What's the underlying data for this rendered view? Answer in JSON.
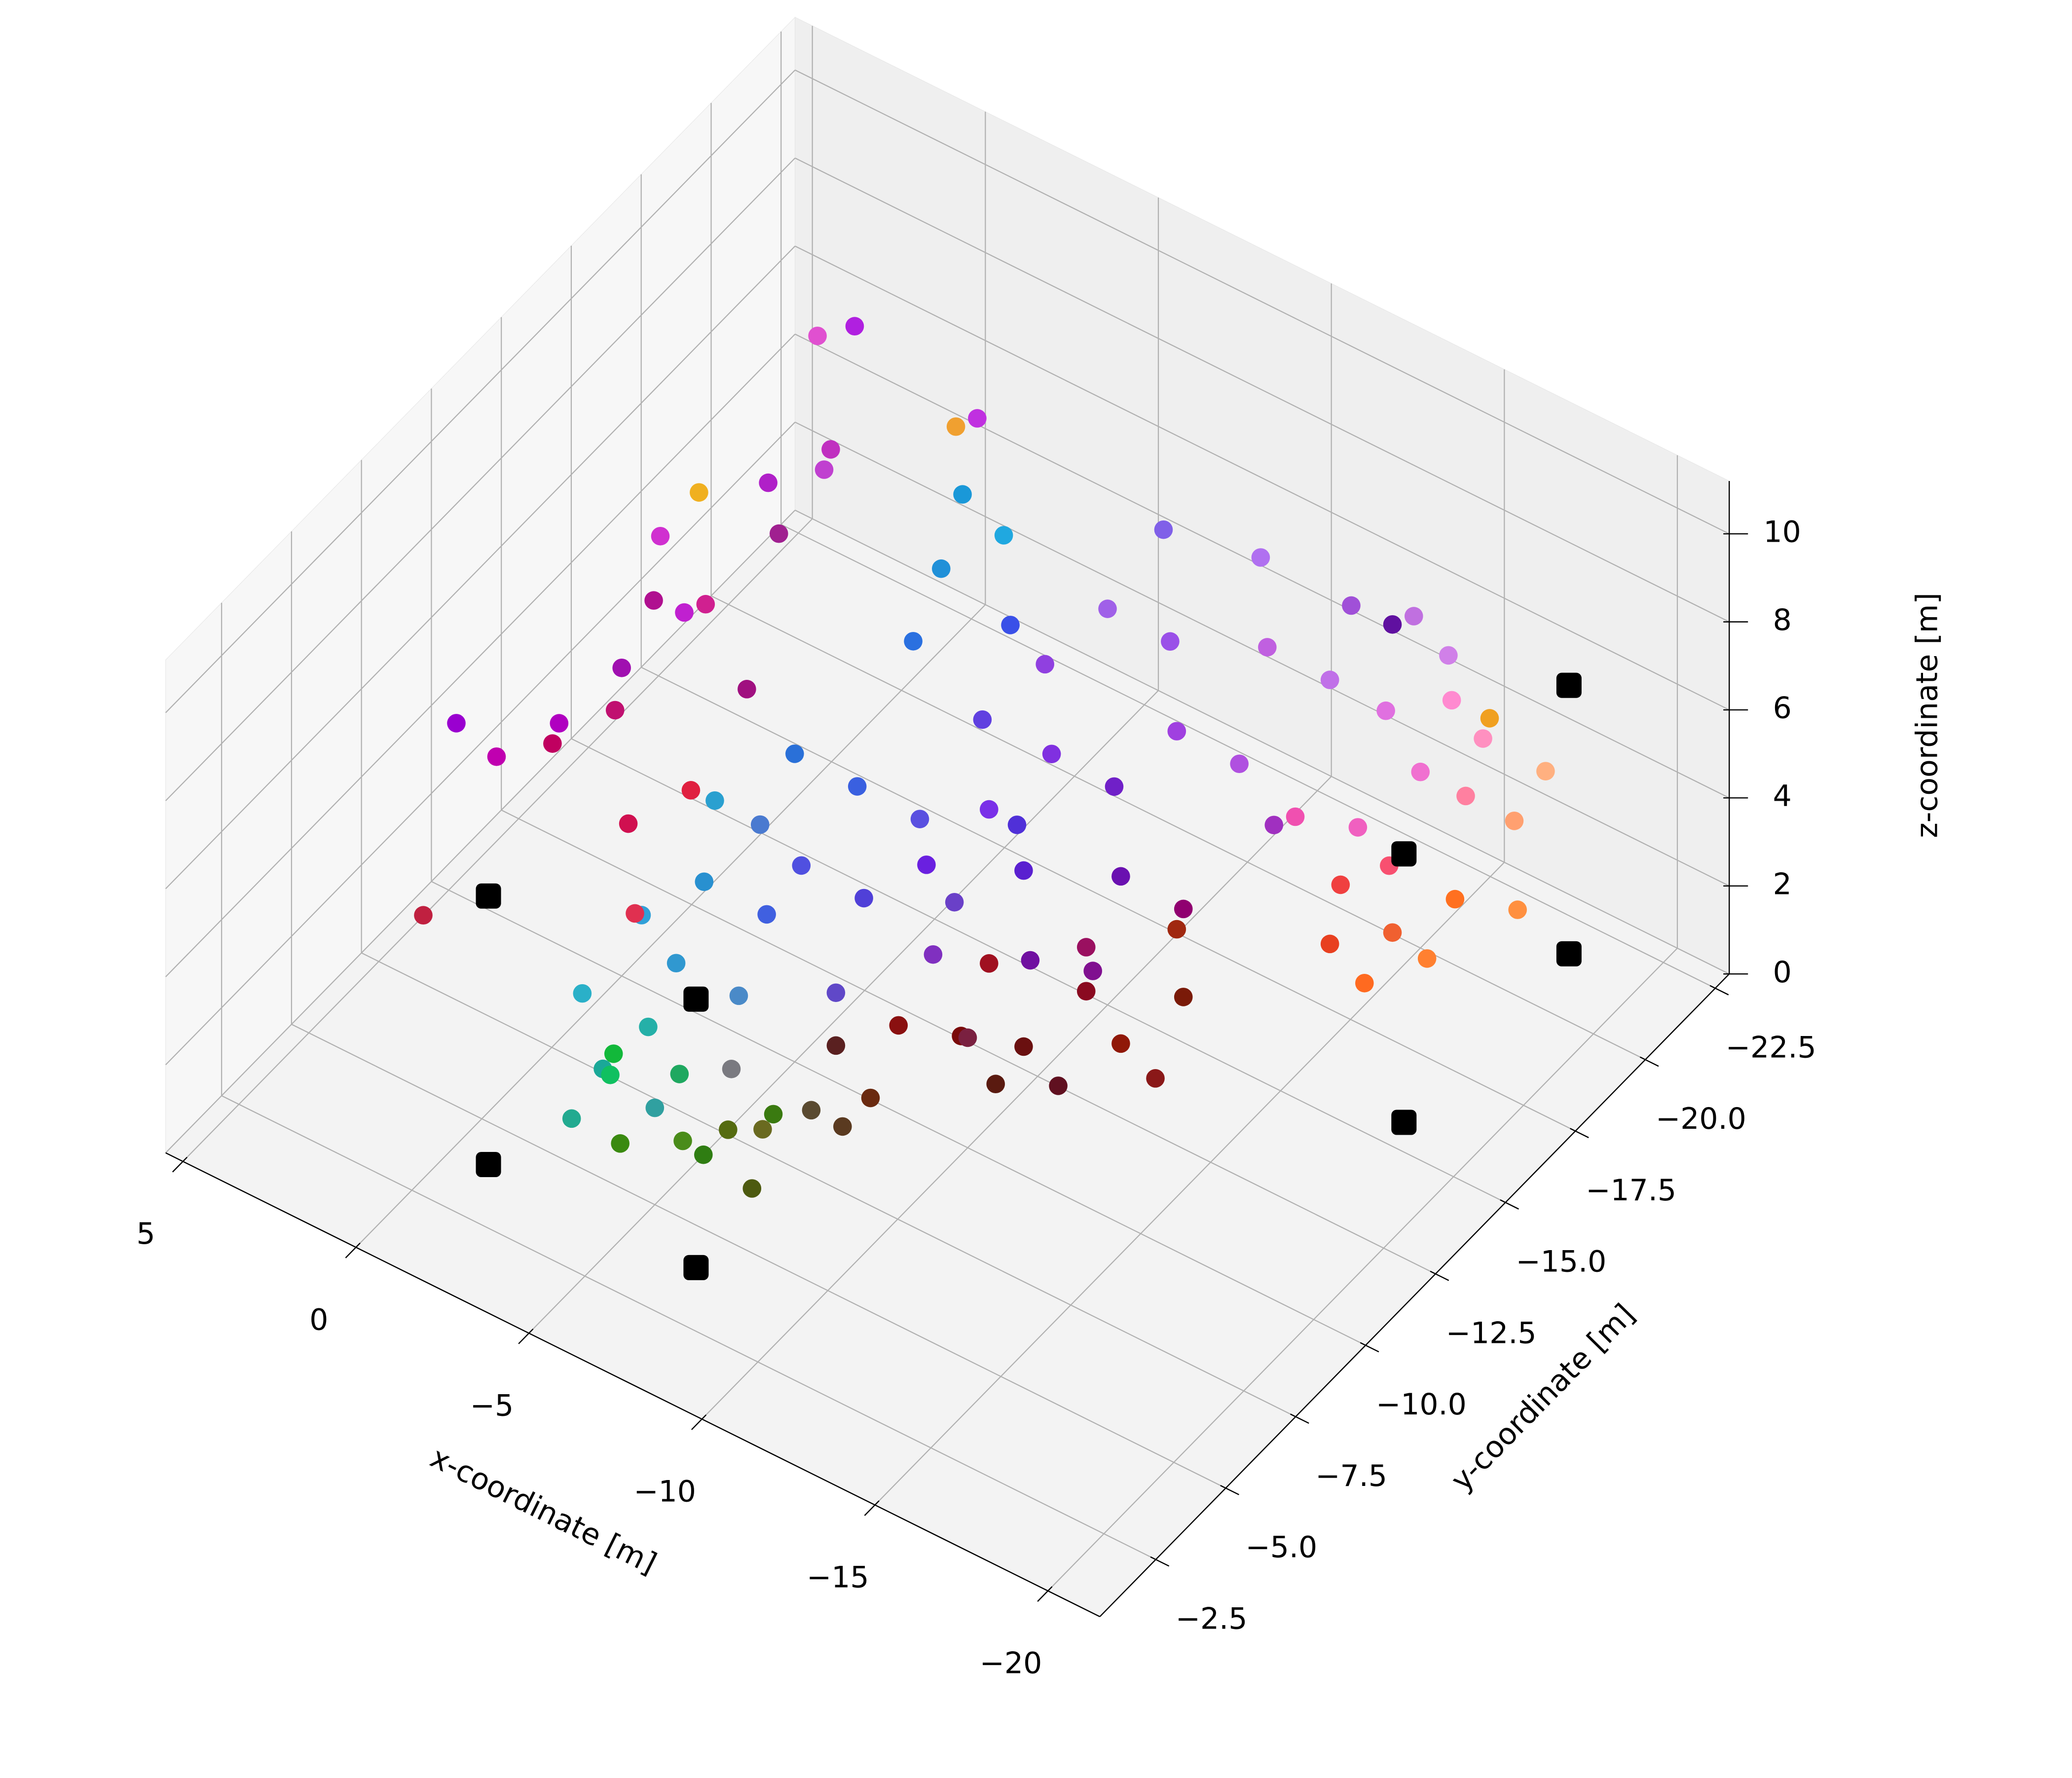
{
  "chart_data": {
    "type": "scatter3d",
    "x_label": "x-coordinate [m]",
    "y_label": "y-coordinate [m]",
    "z_label": "z-coordinate [m]",
    "xlim": [
      -21.5,
      5.5
    ],
    "ylim": [
      -23,
      -0.5
    ],
    "zlim": [
      0,
      11.2
    ],
    "xticks": [
      {
        "value": -20,
        "label": "−20"
      },
      {
        "value": -15,
        "label": "−15"
      },
      {
        "value": -10,
        "label": "−10"
      },
      {
        "value": -5,
        "label": "−5"
      },
      0,
      5
    ],
    "yticks": [
      {
        "value": -22.5,
        "label": "−22.5"
      },
      {
        "value": -20,
        "label": "−20.0"
      },
      {
        "value": -17.5,
        "label": "−17.5"
      },
      {
        "value": -15,
        "label": "−15.0"
      },
      {
        "value": -12.5,
        "label": "−12.5"
      },
      {
        "value": -10,
        "label": "−10.0"
      },
      {
        "value": -7.5,
        "label": "−7.5"
      },
      {
        "value": -5,
        "label": "−5.0"
      },
      {
        "value": -2.5,
        "label": "−2.5"
      }
    ],
    "zticks": [
      0,
      2,
      4,
      6,
      8,
      10
    ],
    "grid": true,
    "points": {
      "x": [
        -4,
        -5,
        -6,
        -5.5,
        -4.5,
        -3.5,
        -4,
        -3,
        -6.5,
        -7,
        -3,
        -5,
        -2.5,
        -4,
        -6,
        -7.5,
        -5,
        -2.5,
        -6,
        -8,
        -3,
        -4,
        -5,
        -6,
        -3.5,
        -5,
        -7,
        -6,
        -4,
        -7,
        -6,
        -7,
        -6,
        -8,
        -5,
        -8,
        -9,
        -10,
        -10,
        -11,
        -9,
        -12,
        -11,
        -12,
        -13,
        -10,
        -13,
        -8,
        -9,
        -11,
        -12,
        -14,
        -14,
        -12,
        -10,
        -8,
        -7,
        -9,
        -13,
        -11,
        -15,
        -8,
        -9,
        -10,
        -11,
        -12,
        -9,
        -10,
        -8,
        -13,
        -11,
        -7,
        -12,
        -10,
        -13,
        -14,
        -15,
        -14.5,
        -15,
        -16,
        -14,
        -15.5,
        -16,
        -14,
        -15,
        -13,
        -16.5,
        -17,
        -13.5,
        -15,
        -16,
        -14,
        -13,
        -15.5,
        -17,
        1,
        0,
        -1,
        2,
        3,
        0.5,
        -1,
        0.3,
        -1,
        -2,
        1,
        0,
        -2,
        2,
        -0.5,
        1.5,
        -1,
        2.5,
        -2,
        0,
        -3,
        -2,
        -4,
        1,
        -17
      ],
      "y": [
        -5,
        -6,
        -5.5,
        -7,
        -6.5,
        -5,
        -6,
        -6,
        -7,
        -6,
        -4.5,
        -5,
        -5.5,
        -7,
        -6.5,
        -7.5,
        -8,
        -6.5,
        -8,
        -8,
        -7,
        -8,
        -9,
        -9,
        -9,
        -10,
        -10,
        -11,
        -10,
        -9,
        -14,
        -15,
        -13,
        -14,
        -16,
        -11,
        -12,
        -12,
        -13,
        -14,
        -14,
        -15,
        -16,
        -13,
        -16,
        -15,
        -17,
        -13,
        -10,
        -11,
        -12,
        -16,
        -18,
        -18,
        -17,
        -12,
        -12,
        -13,
        -14,
        -13,
        -19,
        -10,
        -11,
        -12,
        -13,
        -13,
        -12,
        -11,
        -9,
        -14,
        -12,
        -9,
        -15,
        -10,
        -13,
        -19,
        -20,
        -19.5,
        -19,
        -20,
        -18,
        -21,
        -21,
        -20,
        -21,
        -18,
        -21.5,
        -22,
        -19,
        -18,
        -19,
        -21,
        -20,
        -20.5,
        -21,
        -9,
        -10,
        -11,
        -8,
        -7.8,
        -12,
        -14,
        -18.7,
        -16,
        -12,
        -11,
        -13,
        -10,
        -10,
        -15,
        -13,
        -9,
        -6,
        -8,
        -17,
        -19,
        -15,
        -17,
        -14,
        -20
      ],
      "z": [
        1,
        0.8,
        1.2,
        0.6,
        1.8,
        2.5,
        3,
        2,
        1,
        0.5,
        1.5,
        2.2,
        3.5,
        3.8,
        2.5,
        1.5,
        2.8,
        1,
        0.5,
        1,
        4.5,
        5,
        4,
        5.5,
        6,
        7,
        4.5,
        6,
        5,
        3,
        9,
        9.5,
        8,
        8.5,
        9,
        5,
        6,
        5,
        7,
        6,
        8,
        7,
        8,
        5,
        6,
        9,
        8,
        7,
        4,
        4,
        3.5,
        5,
        7,
        9,
        9.5,
        3.5,
        5,
        5,
        4,
        3,
        8,
        2,
        1.5,
        1,
        2,
        1.2,
        2.5,
        0.8,
        1,
        2,
        0.5,
        1.8,
        2.5,
        2.5,
        0.8,
        3,
        4,
        2,
        1,
        1.5,
        1,
        3,
        4.5,
        5,
        6,
        3.5,
        2.5,
        3.5,
        1.5,
        0.5,
        0.8,
        6.5,
        7,
        5.5,
        1,
        6,
        7,
        8,
        5.5,
        6,
        8.5,
        9,
        9,
        8,
        6,
        5,
        6.5,
        5,
        4.5,
        7,
        6,
        4.5,
        3,
        3.5,
        10,
        8,
        9.5,
        9.5,
        8,
        6
      ],
      "colors": [
        "#3a8a10",
        "#4a8c1a",
        "#2f7d12",
        "#556b10",
        "#1fa860",
        "#1aa898",
        "#25b0a8",
        "#12b83a",
        "#6a6a20",
        "#4d5a10",
        "#22aa90",
        "#30a0a0",
        "#2ab0c8",
        "#3098d0",
        "#7a7a80",
        "#5a4a30",
        "#4a8ac8",
        "#10c060",
        "#3a7a10",
        "#5a3a20",
        "#30a0d8",
        "#2890d0",
        "#4060e0",
        "#5050e0",
        "#2aa0d0",
        "#2a70d8",
        "#5040d8",
        "#3a60e0",
        "#4a7ad0",
        "#6048c8",
        "#2090d8",
        "#20a8e0",
        "#2a70e0",
        "#3a50e8",
        "#1a98d8",
        "#6a20e0",
        "#7a30e8",
        "#5a20d0",
        "#8030e0",
        "#7020c8",
        "#9040e0",
        "#a040e0",
        "#9a50e8",
        "#6a10b0",
        "#b050e0",
        "#a060e8",
        "#c060e0",
        "#6040e0",
        "#8030c0",
        "#7010a0",
        "#801090",
        "#a030c0",
        "#c070e8",
        "#b070f0",
        "#8060e8",
        "#6a40c8",
        "#5a50e0",
        "#5030d8",
        "#900070",
        "#9a1060",
        "#6010a0",
        "#8a1010",
        "#7a0a0a",
        "#6a1010",
        "#8a0a20",
        "#901808",
        "#a01020",
        "#5a1a10",
        "#6a2a10",
        "#7a1a08",
        "#601020",
        "#5a2020",
        "#a02810",
        "#7a2040",
        "#8a1818",
        "#f060c0",
        "#f070d0",
        "#f85070",
        "#f06030",
        "#ff7020",
        "#e84020",
        "#ff80a0",
        "#ff90c0",
        "#e070e0",
        "#d080e8",
        "#f050b0",
        "#ffa070",
        "#ffb080",
        "#f04040",
        "#ff6a20",
        "#ff8030",
        "#c070e0",
        "#a050d8",
        "#ff8ad0",
        "#ff9040",
        "#b000c0",
        "#a010b0",
        "#c020d0",
        "#c000b0",
        "#9a00d0",
        "#d030d0",
        "#b020c8",
        "#b020e0",
        "#c040d0",
        "#a01080",
        "#c01070",
        "#d02090",
        "#e02040",
        "#c00060",
        "#a02090",
        "#b01090",
        "#d01050",
        "#c02040",
        "#e03050",
        "#e050d0",
        "#c030e0",
        "#c030c0",
        "#f0a030",
        "#f0b020",
        "#f0a020"
      ]
    },
    "markers": {
      "x": [
        -1,
        -1,
        -7,
        -7,
        -18,
        -18,
        -18,
        -18
      ],
      "y": [
        -4,
        -4,
        -4,
        -4,
        -15.7,
        -15.7,
        -21.6,
        -21.6
      ],
      "z": [
        0,
        6.1,
        0,
        6.1,
        0,
        6.1,
        0,
        6.1
      ],
      "color": "#000000"
    }
  }
}
